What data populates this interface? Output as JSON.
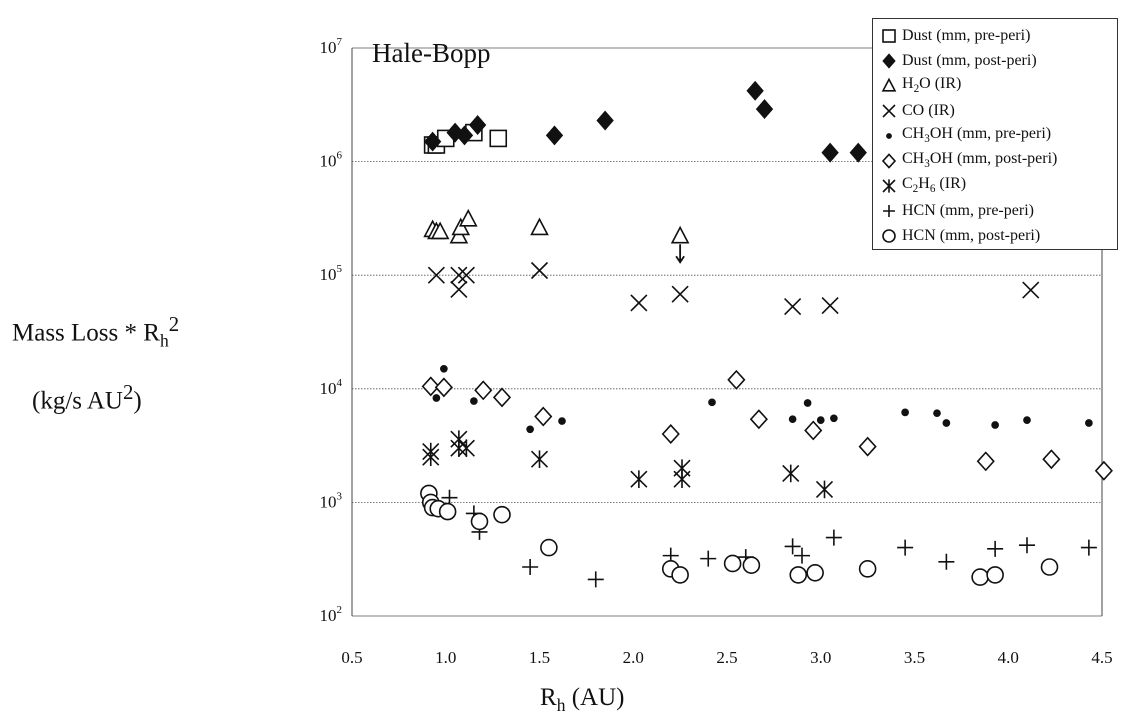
{
  "chart_data": {
    "type": "scatter",
    "title": "Hale-Bopp",
    "ylabel": "Mass Loss * R_h^2 (kg/s AU^2)",
    "xlabel": "R_h (AU)",
    "y_scale": "log",
    "xlim": [
      0.5,
      4.5
    ],
    "ylim": [
      100,
      10000000
    ],
    "x_ticks": [
      0.5,
      1.0,
      1.5,
      2.0,
      2.5,
      3.0,
      3.5,
      4.0,
      4.5
    ],
    "x_tick_labels": [
      "0.5",
      "1.0",
      "1.5",
      "2.0",
      "2.5",
      "3.0",
      "3.5",
      "4.0",
      "4.5"
    ],
    "y_tick_exponents": [
      "2",
      "3",
      "4",
      "5",
      "6",
      "7"
    ],
    "grid": "horizontal",
    "legend_position": "top-right",
    "series": [
      {
        "name": "Dust (mm, pre-peri)",
        "marker": "square-open",
        "points": [
          [
            0.93,
            1400000
          ],
          [
            0.95,
            1400000
          ],
          [
            1.0,
            1600000
          ],
          [
            1.15,
            1800000
          ],
          [
            1.28,
            1600000
          ]
        ]
      },
      {
        "name": "Dust (mm, post-peri)",
        "marker": "diamond-filled",
        "points": [
          [
            0.93,
            1500000
          ],
          [
            1.05,
            1800000
          ],
          [
            1.1,
            1700000
          ],
          [
            1.17,
            2100000
          ],
          [
            1.58,
            1700000
          ],
          [
            1.85,
            2300000
          ],
          [
            2.65,
            4200000
          ],
          [
            2.7,
            2900000
          ],
          [
            3.05,
            1200000
          ],
          [
            3.2,
            1200000
          ]
        ]
      },
      {
        "name": "H2O (IR)",
        "marker": "triangle-open",
        "points": [
          [
            0.93,
            250000
          ],
          [
            0.95,
            240000
          ],
          [
            0.97,
            240000
          ],
          [
            1.07,
            220000
          ],
          [
            1.08,
            260000
          ],
          [
            1.12,
            310000
          ],
          [
            1.5,
            260000
          ],
          [
            2.25,
            220000
          ]
        ]
      },
      {
        "name": "CO (IR)",
        "marker": "x",
        "points": [
          [
            0.95,
            100000
          ],
          [
            1.07,
            100000
          ],
          [
            1.07,
            75000
          ],
          [
            1.11,
            100000
          ],
          [
            1.5,
            110000
          ],
          [
            2.03,
            57000
          ],
          [
            2.25,
            68000
          ],
          [
            2.85,
            53000
          ],
          [
            3.05,
            54000
          ],
          [
            4.12,
            74000
          ]
        ]
      },
      {
        "name": "CH3OH (mm, pre-peri)",
        "marker": "dot",
        "points": [
          [
            0.95,
            8300
          ],
          [
            0.99,
            15000
          ],
          [
            1.15,
            7800
          ],
          [
            1.45,
            4400
          ],
          [
            1.62,
            5200
          ],
          [
            2.42,
            7600
          ],
          [
            2.85,
            5400
          ],
          [
            2.93,
            7500
          ],
          [
            3.0,
            5300
          ],
          [
            3.07,
            5500
          ],
          [
            3.45,
            6200
          ],
          [
            3.62,
            6100
          ],
          [
            3.67,
            5000
          ],
          [
            3.93,
            4800
          ],
          [
            4.1,
            5300
          ],
          [
            4.43,
            5000
          ]
        ]
      },
      {
        "name": "CH3OH (mm, post-peri)",
        "marker": "diamond-open",
        "points": [
          [
            0.92,
            10500
          ],
          [
            0.99,
            10300
          ],
          [
            1.2,
            9700
          ],
          [
            1.3,
            8400
          ],
          [
            1.52,
            5700
          ],
          [
            2.2,
            4000
          ],
          [
            2.55,
            12000
          ],
          [
            2.67,
            5400
          ],
          [
            2.96,
            4300
          ],
          [
            3.25,
            3100
          ],
          [
            3.88,
            2300
          ],
          [
            4.23,
            2400
          ],
          [
            4.51,
            1900
          ]
        ]
      },
      {
        "name": "C2H6 (IR)",
        "marker": "asterisk",
        "points": [
          [
            0.92,
            2800
          ],
          [
            0.92,
            2500
          ],
          [
            1.07,
            3600
          ],
          [
            1.07,
            3000
          ],
          [
            1.11,
            3000
          ],
          [
            1.5,
            2400
          ],
          [
            2.03,
            1600
          ],
          [
            2.26,
            2000
          ],
          [
            2.26,
            1600
          ],
          [
            2.84,
            1800
          ],
          [
            3.02,
            1300
          ]
        ]
      },
      {
        "name": "HCN (mm, pre-peri)",
        "marker": "plus",
        "points": [
          [
            1.02,
            1100
          ],
          [
            1.15,
            800
          ],
          [
            1.18,
            550
          ],
          [
            1.45,
            270
          ],
          [
            1.8,
            210
          ],
          [
            2.2,
            340
          ],
          [
            2.4,
            320
          ],
          [
            2.6,
            330
          ],
          [
            2.85,
            410
          ],
          [
            2.9,
            340
          ],
          [
            3.07,
            490
          ],
          [
            3.45,
            400
          ],
          [
            3.67,
            300
          ],
          [
            3.93,
            390
          ],
          [
            4.1,
            420
          ],
          [
            4.43,
            400
          ]
        ]
      },
      {
        "name": "HCN (mm, post-peri)",
        "marker": "circle-open",
        "points": [
          [
            0.91,
            1200
          ],
          [
            0.92,
            1000
          ],
          [
            0.93,
            900
          ],
          [
            0.96,
            880
          ],
          [
            1.01,
            830
          ],
          [
            1.18,
            680
          ],
          [
            1.3,
            780
          ],
          [
            1.55,
            400
          ],
          [
            2.2,
            260
          ],
          [
            2.25,
            230
          ],
          [
            2.53,
            290
          ],
          [
            2.63,
            280
          ],
          [
            2.88,
            230
          ],
          [
            2.97,
            240
          ],
          [
            3.25,
            260
          ],
          [
            3.85,
            220
          ],
          [
            3.93,
            230
          ],
          [
            4.22,
            270
          ]
        ]
      }
    ]
  }
}
